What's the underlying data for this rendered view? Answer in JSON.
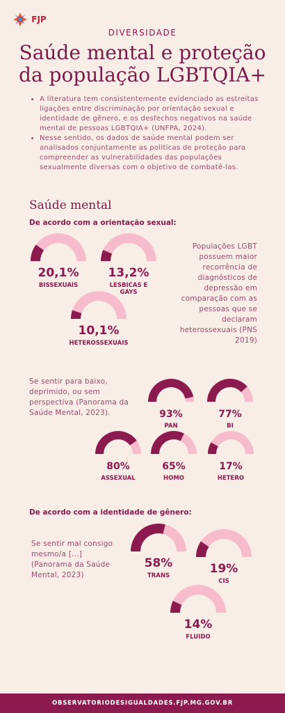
{
  "header": {
    "logo": "FJP",
    "kicker": "DIVERSIDADE",
    "title_lines": [
      "Saúde mental e proteção",
      "da população LGBTQIA+"
    ]
  },
  "bullets": [
    "A literatura tem consistentemente evidenciado as estreitas ligações entre discriminação por orientação sexual e identidade de gênero, e os desfechos negativos na saúde mental de pessoas LGBTQIA+ (UNFPA, 2024).",
    "Nesse sentido, os dados de saúde mental podem ser analisados conjuntamente as politicas de proteção para compreender as vulnerabilidades das populações sexualmente diversas com o objetivo de combatê-las."
  ],
  "section_title": "Saúde mental",
  "groups": [
    {
      "heading": "De acordo com a orientação sexual:",
      "note": "Populações LGBT possuem maior recorrência de diagnósticos de depressão em comparação com as pessoas que se declaram heterossexuais (PNS 2019)",
      "chart_data": {
        "type": "gauge",
        "categories": [
          "BISSEXUAIS",
          "LESBICAS E GAYS",
          "HETEROSSEXUAIS"
        ],
        "values": [
          20.1,
          13.2,
          10.1
        ],
        "value_labels": [
          "20,1%",
          "13,2%",
          "10,1%"
        ],
        "colors": [
          "#8b1a4f",
          "#f6bccb"
        ]
      }
    },
    {
      "note": "Se sentir para baixo, deprimido, ou sem perspectiva (Panorama da Saúde Mental, 2023).",
      "chart_data": {
        "type": "gauge",
        "categories": [
          "PAN",
          "BI",
          "ASSEXUAL",
          "HOMO",
          "HETERO"
        ],
        "values": [
          93,
          77,
          80,
          65,
          17
        ],
        "value_labels": [
          "93%",
          "77%",
          "80%",
          "65%",
          "17%"
        ],
        "colors": [
          "#8b1a4f",
          "#f6bccb"
        ]
      }
    },
    {
      "heading": "De acordo com a identidade de gênero:",
      "note": "Se sentir mal consigo mesmo/a [...] (Panorama da Saúde Mental, 2023)",
      "chart_data": {
        "type": "gauge",
        "categories": [
          "TRANS",
          "CIS",
          "FLUIDO"
        ],
        "values": [
          58,
          19,
          14
        ],
        "value_labels": [
          "58%",
          "19%",
          "14%"
        ],
        "colors": [
          "#8b1a4f",
          "#f6bccb"
        ]
      }
    }
  ],
  "footer": "OBSERVATORIODESIGUALDADES.FJP.MG.GOV.BR"
}
